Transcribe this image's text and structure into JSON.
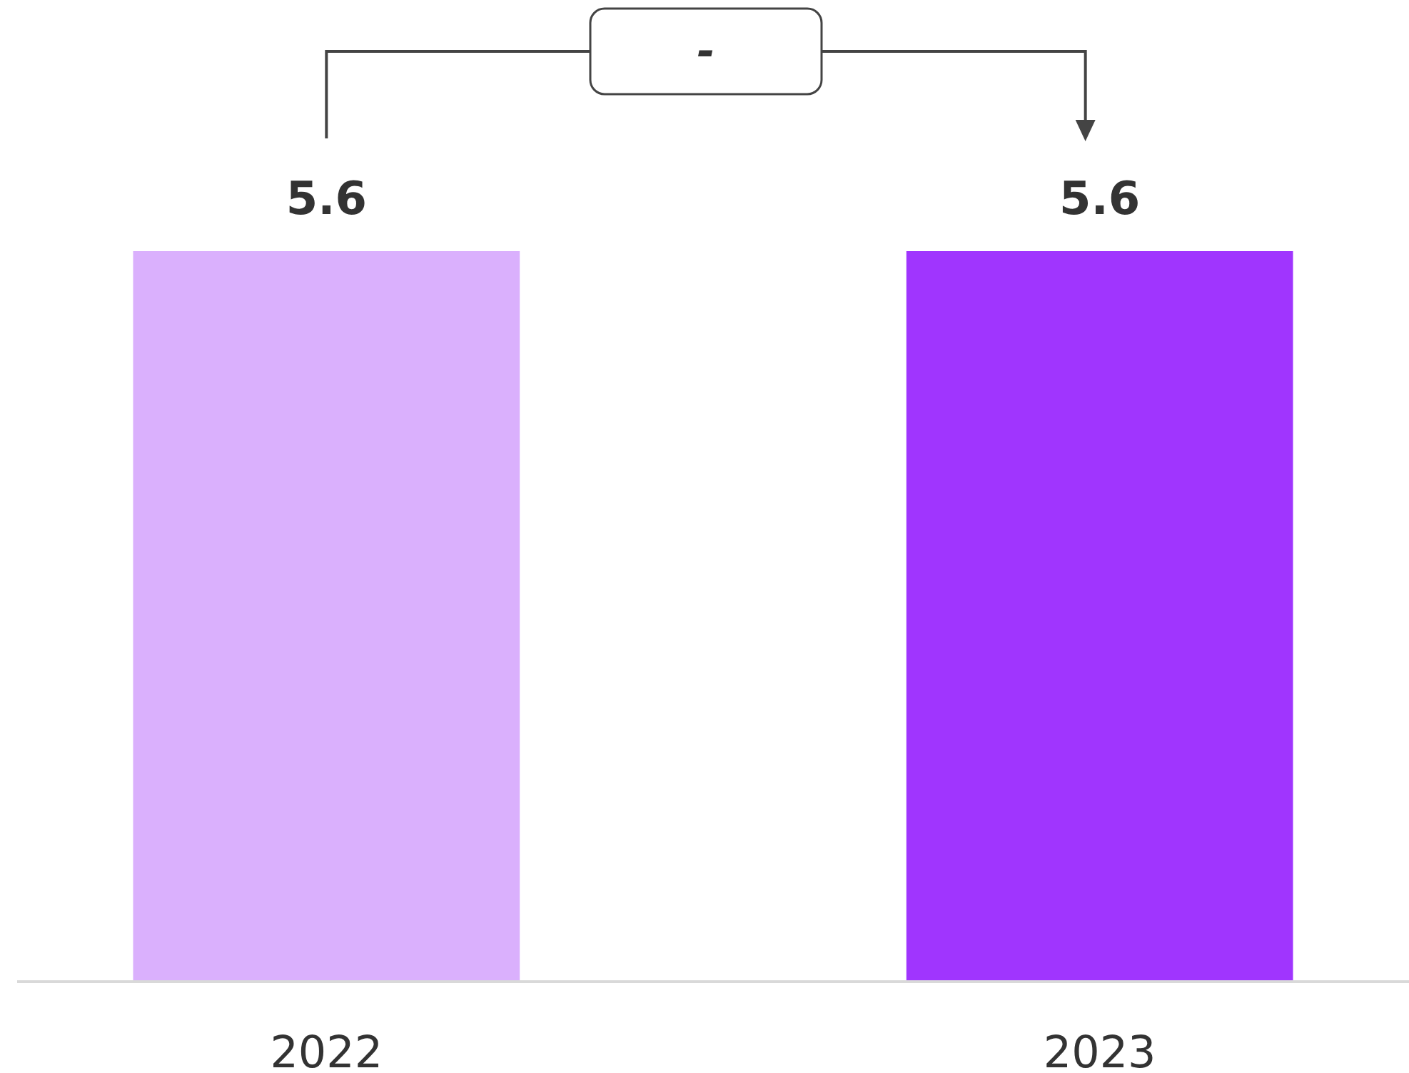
{
  "chart_data": {
    "type": "bar",
    "categories": [
      "2022",
      "2023"
    ],
    "values": [
      5.6,
      5.6
    ],
    "colors": [
      "#dab0fd",
      "#a035fe"
    ],
    "data_labels": true,
    "annotations": [
      "-"
    ]
  }
}
